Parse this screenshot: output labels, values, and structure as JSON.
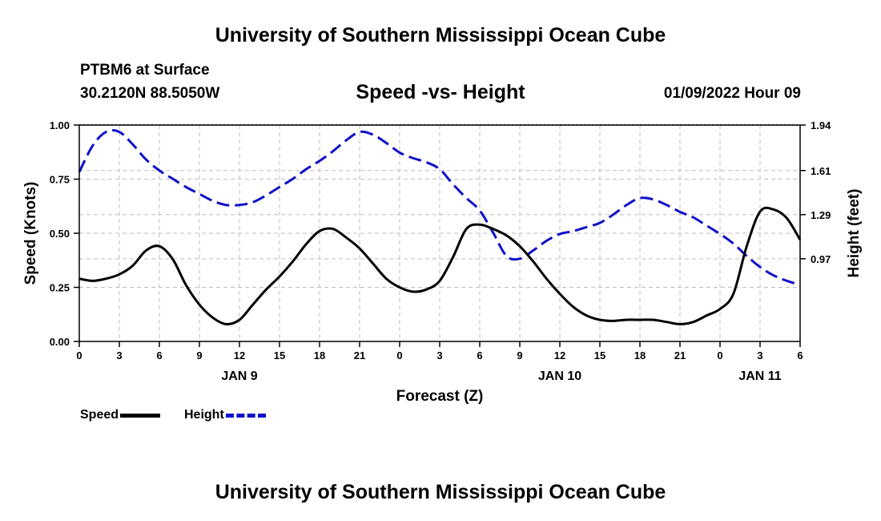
{
  "header": {
    "title": "University of Southern Mississippi Ocean Cube",
    "station": "PTBM6 at Surface",
    "coords": "30.2120N  88.5050W",
    "chart_title": "Speed -vs- Height",
    "datetime": "01/09/2022 Hour 09"
  },
  "footer": {
    "title": "University of Southern Mississippi Ocean Cube"
  },
  "legend": [
    {
      "label": "Speed",
      "color": "#000000",
      "style": "solid"
    },
    {
      "label": "Height",
      "color": "#1010c8",
      "style": "dashed"
    }
  ],
  "chart_data": {
    "type": "line",
    "title": "Speed -vs- Height",
    "xlabel": "Forecast (Z)",
    "ylabel": "Speed (Knots)",
    "y2label": "Height (feet)",
    "xlim": [
      0,
      54
    ],
    "ylim": [
      0,
      1
    ],
    "y2lim": [
      0.37,
      1.94
    ],
    "grid": true,
    "x_ticks": [
      {
        "x": 0,
        "label": "0"
      },
      {
        "x": 3,
        "label": "3"
      },
      {
        "x": 6,
        "label": "6"
      },
      {
        "x": 9,
        "label": "9"
      },
      {
        "x": 12,
        "label": "12"
      },
      {
        "x": 15,
        "label": "15"
      },
      {
        "x": 18,
        "label": "18"
      },
      {
        "x": 21,
        "label": "21"
      },
      {
        "x": 24,
        "label": "0"
      },
      {
        "x": 27,
        "label": "3"
      },
      {
        "x": 30,
        "label": "6"
      },
      {
        "x": 33,
        "label": "9"
      },
      {
        "x": 36,
        "label": "12"
      },
      {
        "x": 39,
        "label": "15"
      },
      {
        "x": 42,
        "label": "18"
      },
      {
        "x": 45,
        "label": "21"
      },
      {
        "x": 48,
        "label": "0"
      },
      {
        "x": 51,
        "label": "3"
      },
      {
        "x": 54,
        "label": "6"
      }
    ],
    "date_labels": [
      {
        "x": 12,
        "label": "JAN 9"
      },
      {
        "x": 36,
        "label": "JAN 10"
      },
      {
        "x": 51,
        "label": "JAN 11"
      }
    ],
    "y_ticks": [
      {
        "v": 0,
        "label": "0.00"
      },
      {
        "v": 0.25,
        "label": "0.25"
      },
      {
        "v": 0.5,
        "label": "0.50"
      },
      {
        "v": 0.75,
        "label": "0.75"
      },
      {
        "v": 1.0,
        "label": "1.00"
      }
    ],
    "y2_ticks": [
      {
        "v": 0.97,
        "label": "0.97"
      },
      {
        "v": 1.29,
        "label": "1.29"
      },
      {
        "v": 1.61,
        "label": "1.61"
      },
      {
        "v": 1.94,
        "label": "1.94"
      }
    ],
    "series": [
      {
        "name": "Speed",
        "axis": "left",
        "color": "#000000",
        "dash": false,
        "x": [
          0,
          1,
          2,
          3,
          4,
          5,
          6,
          7,
          8,
          9,
          10,
          11,
          12,
          13,
          14,
          15,
          16,
          17,
          18,
          19,
          20,
          21,
          22,
          23,
          24,
          25,
          26,
          27,
          28,
          29,
          30,
          31,
          32,
          33,
          34,
          35,
          36,
          37,
          38,
          39,
          40,
          41,
          42,
          43,
          44,
          45,
          46,
          47,
          48,
          49,
          50,
          51,
          52,
          53,
          54
        ],
        "values": [
          0.29,
          0.28,
          0.29,
          0.31,
          0.35,
          0.42,
          0.44,
          0.38,
          0.26,
          0.17,
          0.11,
          0.08,
          0.1,
          0.17,
          0.24,
          0.3,
          0.37,
          0.45,
          0.51,
          0.52,
          0.48,
          0.43,
          0.36,
          0.29,
          0.25,
          0.23,
          0.24,
          0.28,
          0.39,
          0.52,
          0.54,
          0.52,
          0.49,
          0.44,
          0.37,
          0.29,
          0.22,
          0.16,
          0.12,
          0.1,
          0.095,
          0.1,
          0.1,
          0.1,
          0.09,
          0.08,
          0.09,
          0.12,
          0.15,
          0.22,
          0.44,
          0.6,
          0.61,
          0.57,
          0.47
        ]
      },
      {
        "name": "Height",
        "axis": "right",
        "color": "#1010c8",
        "dash": true,
        "x": [
          0,
          1,
          2,
          3,
          4,
          5,
          6,
          7,
          8,
          9,
          10,
          11,
          12,
          13,
          14,
          15,
          16,
          17,
          18,
          19,
          20,
          21,
          22,
          23,
          24,
          25,
          26,
          27,
          28,
          29,
          30,
          31,
          32,
          33,
          34,
          35,
          36,
          37,
          38,
          39,
          40,
          41,
          42,
          43,
          44,
          45,
          46,
          47,
          48,
          49,
          50,
          51,
          52,
          53,
          54
        ],
        "values": [
          1.6,
          1.79,
          1.89,
          1.89,
          1.8,
          1.69,
          1.61,
          1.55,
          1.49,
          1.44,
          1.39,
          1.36,
          1.36,
          1.38,
          1.43,
          1.49,
          1.55,
          1.62,
          1.68,
          1.75,
          1.83,
          1.89,
          1.87,
          1.81,
          1.74,
          1.7,
          1.67,
          1.62,
          1.51,
          1.41,
          1.32,
          1.16,
          0.99,
          0.97,
          1.03,
          1.1,
          1.15,
          1.17,
          1.2,
          1.23,
          1.29,
          1.36,
          1.41,
          1.4,
          1.36,
          1.31,
          1.27,
          1.21,
          1.15,
          1.08,
          0.99,
          0.91,
          0.85,
          0.81,
          0.78
        ]
      }
    ]
  }
}
